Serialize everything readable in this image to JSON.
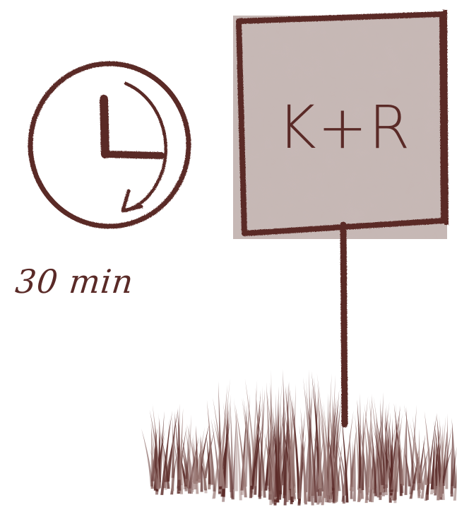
{
  "duration_label": "30 min",
  "sign": {
    "text": "K+R"
  },
  "icons": {
    "timer": "clock-with-arrow-icon",
    "sign": "signpost-icon",
    "grass": "grass-tuft"
  },
  "colors": {
    "ink": "#5a2a27",
    "sign_fill": "#c7b9b6",
    "background": "#ffffff",
    "grass_dark": "#5b2b28",
    "grass_light": "#9d7d79"
  }
}
